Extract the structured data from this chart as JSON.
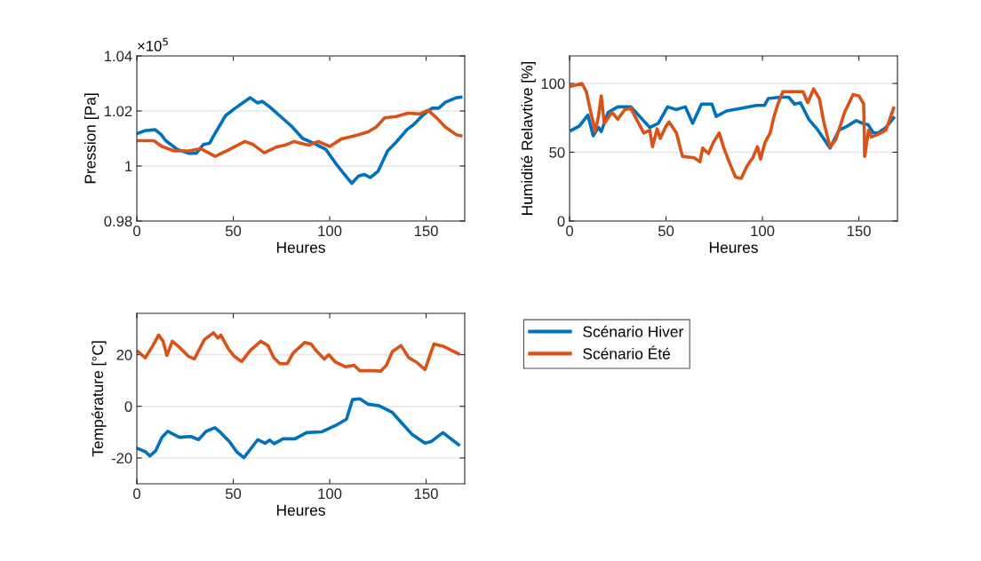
{
  "chart_data": [
    {
      "type": "line",
      "ylabel": "Pression [Pa]",
      "xlabel": "Heures",
      "xlim": [
        0,
        170
      ],
      "xticks": [
        0,
        50,
        100,
        150
      ],
      "ylim": [
        0.98,
        1.04
      ],
      "yticks": [
        0.98,
        1,
        1.02,
        1.04
      ],
      "annotations": [
        "×10$^{5}$"
      ],
      "grid": "y",
      "series": [
        {
          "color": "#0072bd",
          "x": [
            0.5,
            4,
            9.5,
            12.6,
            15,
            21,
            27,
            30.8,
            34.5,
            37.6,
            40.6,
            46,
            51,
            55,
            58.8,
            62.6,
            65,
            69,
            74,
            80,
            86,
            92,
            98,
            104,
            109,
            111.5,
            115,
            118,
            121,
            125,
            130,
            134.5,
            140,
            143.6,
            148,
            153,
            156.5,
            160,
            165.6,
            168
          ],
          "values": [
            1.0119,
            1.0128,
            1.0132,
            1.0114,
            1.0092,
            1.006,
            1.0046,
            1.0046,
            1.0078,
            1.0082,
            1.0119,
            1.0183,
            1.021,
            1.023,
            1.0248,
            1.0229,
            1.0235,
            1.0214,
            1.0183,
            1.0146,
            1.01,
            1.0082,
            1.006,
            1.0001,
            0.9958,
            0.9937,
            0.9964,
            0.9969,
            0.9958,
            0.998,
            1.0055,
            1.0087,
            1.0132,
            1.0151,
            1.0183,
            1.021,
            1.021,
            1.0232,
            1.0248,
            1.025
          ]
        },
        {
          "color": "#d95319",
          "x": [
            0.5,
            8.8,
            13,
            19.4,
            27,
            33,
            40.6,
            48,
            56,
            60.3,
            66,
            72.4,
            77,
            81.5,
            89,
            94,
            100,
            106,
            110,
            115,
            120,
            124,
            128.5,
            134.5,
            140.6,
            146.7,
            151,
            155.7,
            160,
            165.6,
            168
          ],
          "values": [
            1.0092,
            1.0092,
            1.0071,
            1.0055,
            1.0055,
            1.0063,
            1.0035,
            1.006,
            1.0089,
            1.0078,
            1.0048,
            1.0069,
            1.0076,
            1.0089,
            1.0076,
            1.0089,
            1.0071,
            1.0098,
            1.0105,
            1.0114,
            1.0124,
            1.0141,
            1.0175,
            1.018,
            1.0192,
            1.0189,
            1.0203,
            1.0173,
            1.0141,
            1.0114,
            1.011
          ]
        }
      ]
    },
    {
      "type": "line",
      "ylabel": "Humidité Relavtive [%]",
      "xlabel": "Heures",
      "xlim": [
        0,
        170
      ],
      "xticks": [
        0,
        50,
        100,
        150
      ],
      "ylim": [
        0,
        120
      ],
      "yticks": [
        0,
        50,
        100
      ],
      "grid": "y",
      "series": [
        {
          "color": "#0072bd",
          "x": [
            1,
            5,
            9.5,
            12.2,
            15,
            16.4,
            20,
            25,
            31.7,
            37,
            41.6,
            46,
            50.8,
            55.4,
            60,
            63.8,
            68.4,
            73.8,
            76,
            81.4,
            89,
            96.8,
            101,
            103,
            109,
            113.6,
            116.6,
            119.7,
            124,
            128.8,
            135,
            139.7,
            144,
            148.6,
            151.8,
            154.8,
            157.5,
            160,
            164,
            168
          ],
          "values": [
            66,
            69,
            77,
            62,
            68,
            65,
            79,
            83,
            83,
            75,
            68,
            71,
            83,
            81,
            83,
            71,
            85,
            85,
            76,
            80,
            82,
            84,
            84,
            89,
            90,
            90,
            85,
            86,
            74,
            66,
            53,
            66,
            69,
            73,
            71,
            70,
            64,
            64,
            68,
            75
          ]
        },
        {
          "color": "#d95319",
          "x": [
            1,
            6.4,
            8.7,
            11,
            13.3,
            15,
            16.4,
            18,
            22,
            25,
            28.6,
            31.7,
            34.7,
            38.5,
            41.6,
            43,
            45.4,
            47,
            50,
            51.6,
            55.4,
            58.5,
            64.6,
            67.6,
            69,
            72,
            74.5,
            77.6,
            80,
            83,
            86,
            89,
            92,
            95,
            97.4,
            99,
            101.3,
            104,
            106,
            108,
            110.6,
            115,
            121,
            123.5,
            126.5,
            129.5,
            131.8,
            135,
            138,
            142.6,
            147,
            150,
            152.5,
            153,
            155,
            156.5,
            160,
            164,
            168
          ],
          "values": [
            98,
            100,
            94,
            79,
            65,
            76,
            91,
            71,
            79,
            74,
            81,
            82,
            74,
            64,
            66,
            54,
            67,
            60,
            69,
            72,
            64,
            47,
            46,
            43,
            53,
            49,
            57,
            64,
            53,
            42,
            32,
            31,
            40,
            46,
            54,
            45,
            57,
            64,
            76,
            85,
            94,
            94,
            94,
            86,
            96,
            89,
            72,
            54,
            59,
            79,
            92,
            91,
            85,
            47,
            66,
            61,
            63,
            66,
            82
          ]
        }
      ]
    },
    {
      "type": "line",
      "ylabel": "Température [°C]",
      "xlabel": "Heures",
      "xlim": [
        0,
        170
      ],
      "xticks": [
        0,
        50,
        100,
        150
      ],
      "ylim": [
        -30,
        36
      ],
      "yticks": [
        -20,
        0,
        20
      ],
      "grid": "y",
      "legend": "right",
      "series": [
        {
          "name": "Scénario Hiver",
          "color": "#0072bd",
          "x": [
            0.6,
            4.4,
            6.8,
            9.8,
            13,
            16,
            22,
            28,
            32,
            35.9,
            40.5,
            43.5,
            48,
            52,
            55.5,
            58.9,
            62.7,
            66.6,
            68.9,
            71.2,
            75.8,
            82,
            88,
            95.7,
            103.4,
            108.7,
            111.8,
            115.6,
            120,
            125.6,
            132.5,
            137,
            142.6,
            149.4,
            152.5,
            158.7,
            161.8,
            166.8
          ],
          "values": [
            -16.4,
            -17.6,
            -19.2,
            -17.2,
            -12,
            -9.7,
            -12,
            -11.7,
            -12.9,
            -9.7,
            -8.3,
            -10.2,
            -13.7,
            -17.8,
            -19.9,
            -16.6,
            -12.9,
            -14.3,
            -13.1,
            -14.5,
            -12.6,
            -12.6,
            -10.2,
            -9.9,
            -7.3,
            -5,
            2.6,
            2.9,
            0.8,
            0.2,
            -2.4,
            -6.2,
            -10.8,
            -14.3,
            -13.7,
            -10.2,
            -12,
            -14.9
          ]
        },
        {
          "name": "Scénario Été",
          "color": "#d95319",
          "x": [
            0.6,
            4.4,
            8.3,
            11.3,
            13.6,
            15.6,
            18.4,
            22,
            26.7,
            29.8,
            35,
            39.7,
            42,
            43.5,
            47.4,
            50.5,
            54.3,
            58.9,
            64.3,
            68,
            71,
            74.2,
            78,
            81,
            87,
            90.3,
            93.4,
            97.2,
            99.5,
            103,
            108,
            112.6,
            115.6,
            123,
            126.4,
            129.4,
            132.5,
            137,
            141,
            145,
            149.4,
            151.8,
            154,
            158.7,
            163,
            166.8
          ],
          "values": [
            21.2,
            18.8,
            23.5,
            27.6,
            25.2,
            19.7,
            25.2,
            22.9,
            19.4,
            18.3,
            25.8,
            28.5,
            26.4,
            27.6,
            22.3,
            19.4,
            17.3,
            21.7,
            25.2,
            23.5,
            18.8,
            16.5,
            16.5,
            20.6,
            24.7,
            24.1,
            21.2,
            18.3,
            20,
            17.1,
            15.3,
            15.9,
            13.8,
            13.8,
            13.6,
            15.9,
            21.2,
            23.5,
            18.8,
            17.1,
            14.2,
            19.4,
            24.1,
            23.3,
            21.7,
            20.3
          ]
        }
      ]
    }
  ]
}
